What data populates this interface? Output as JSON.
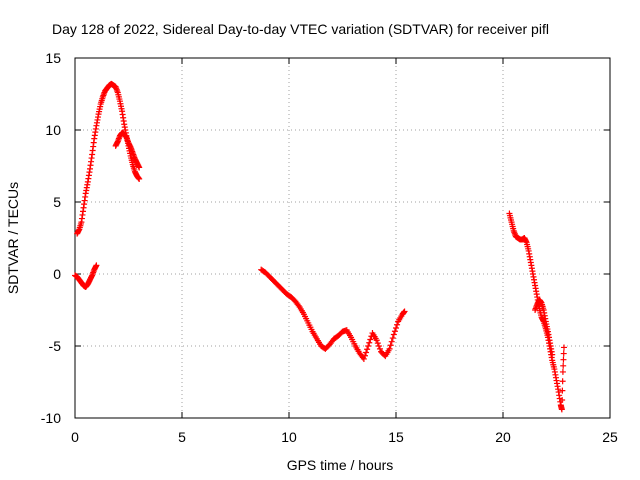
{
  "chart_data": {
    "type": "scatter",
    "title": "Day 128 of 2022, Sidereal Day-to-day VTEC variation (SDTVAR) for receiver pifl",
    "xlabel": "GPS time / hours",
    "ylabel": "SDTVAR / TECUs",
    "xlim": [
      0,
      25
    ],
    "ylim": [
      -10,
      15
    ],
    "xticks": [
      "0",
      "5",
      "10",
      "15",
      "20",
      "25"
    ],
    "yticks": [
      "15",
      "10",
      "5",
      "0",
      "-5",
      "-10"
    ],
    "grid": true,
    "legend": "none",
    "marker": "+",
    "color": "#ff0000",
    "series": [
      {
        "x": [
          0.1,
          0.2,
          0.3,
          0.4,
          0.5,
          0.6,
          0.7,
          0.8,
          0.9,
          1.0,
          1.1,
          1.2,
          1.3,
          1.4,
          1.5,
          1.6,
          1.7,
          1.8,
          1.9,
          2.0,
          2.1,
          2.2,
          2.3,
          2.4,
          2.5,
          2.6,
          2.7,
          2.8,
          2.9,
          3.0
        ],
        "y": [
          2.8,
          3.1,
          3.6,
          4.6,
          5.6,
          6.4,
          7.3,
          8.3,
          9.4,
          10.3,
          11.1,
          11.8,
          12.3,
          12.7,
          12.9,
          13.1,
          13.2,
          13.1,
          13.0,
          12.6,
          12.0,
          11.3,
          10.4,
          9.6,
          8.9,
          8.2,
          7.6,
          7.1,
          6.8,
          6.6
        ]
      },
      {
        "x": [
          1.9,
          2.0,
          2.1,
          2.2,
          2.3,
          2.4,
          2.5,
          2.6,
          2.7,
          2.8,
          2.9,
          3.0
        ],
        "y": [
          8.9,
          9.2,
          9.6,
          9.8,
          9.7,
          9.5,
          9.1,
          8.8,
          8.4,
          8.0,
          7.7,
          7.4
        ]
      },
      {
        "x": [
          0.0,
          0.1,
          0.2,
          0.3,
          0.4,
          0.5,
          0.6,
          0.7,
          0.8,
          0.9,
          1.0
        ],
        "y": [
          -0.1,
          -0.2,
          -0.4,
          -0.6,
          -0.8,
          -0.9,
          -0.7,
          -0.4,
          -0.1,
          0.3,
          0.6
        ]
      },
      {
        "x": [
          8.7,
          8.9,
          9.1,
          9.3,
          9.5,
          9.7,
          9.9,
          10.1,
          10.3,
          10.5,
          10.7,
          10.9,
          11.1,
          11.3,
          11.5,
          11.7,
          11.9,
          12.1,
          12.3,
          12.5,
          12.7,
          12.9,
          13.1,
          13.3,
          13.5,
          13.7,
          13.9,
          14.1,
          14.3,
          14.5,
          14.7,
          14.9,
          15.1,
          15.3,
          15.4
        ],
        "y": [
          0.3,
          0.1,
          -0.2,
          -0.5,
          -0.8,
          -1.1,
          -1.4,
          -1.6,
          -1.9,
          -2.3,
          -2.8,
          -3.4,
          -4.0,
          -4.5,
          -5.0,
          -5.2,
          -4.9,
          -4.5,
          -4.3,
          -4.0,
          -3.9,
          -4.4,
          -5.0,
          -5.5,
          -5.9,
          -5.0,
          -4.1,
          -4.6,
          -5.4,
          -5.7,
          -5.2,
          -4.2,
          -3.3,
          -2.8,
          -2.6
        ]
      },
      {
        "x": [
          20.3,
          20.4,
          20.5,
          20.6,
          20.7,
          20.8,
          20.9,
          21.0,
          21.1,
          21.2,
          21.3,
          21.4,
          21.5,
          21.6,
          21.7,
          21.8,
          21.9,
          22.0,
          22.1,
          22.2,
          22.3,
          22.4,
          22.5,
          22.6,
          22.7,
          22.75,
          22.8,
          22.85
        ],
        "y": [
          4.2,
          3.6,
          3.0,
          2.6,
          2.5,
          2.4,
          2.4,
          2.5,
          2.2,
          1.6,
          0.8,
          0.0,
          -0.8,
          -1.6,
          -2.4,
          -3.0,
          -3.3,
          -3.8,
          -4.4,
          -5.2,
          -6.0,
          -6.6,
          -7.4,
          -8.2,
          -9.1,
          -9.4,
          -6.8,
          -5.1
        ]
      },
      {
        "x": [
          21.5,
          21.6,
          21.7,
          21.8,
          21.9,
          22.0,
          22.1,
          22.2,
          22.3
        ],
        "y": [
          -2.5,
          -2.1,
          -1.8,
          -2.0,
          -2.5,
          -3.3,
          -4.0,
          -4.8,
          -5.6
        ]
      }
    ]
  }
}
